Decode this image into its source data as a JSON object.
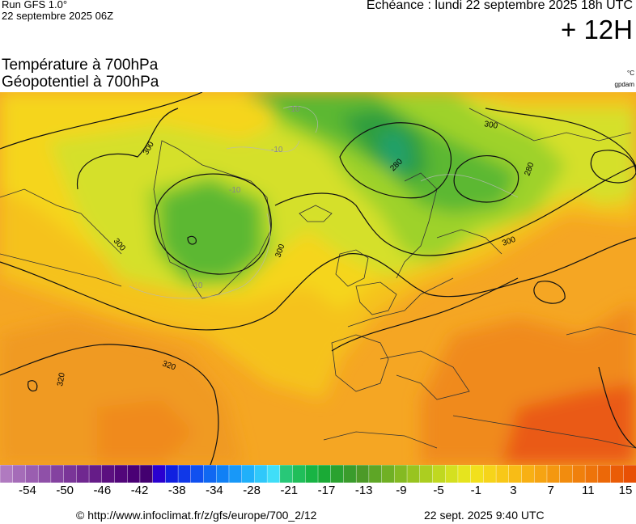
{
  "header": {
    "run": "Run GFS 1.0°",
    "run_date": "22 septembre 2025 06Z",
    "valid_time": "Echéance : lundi 22 septembre 2025 18h UTC",
    "lead_time": "+ 12H"
  },
  "titles": {
    "line1": "Température à 700hPa",
    "line2": "Géopotentiel à 700hPa",
    "unit_temp": "°C",
    "unit_geo": "gpdam"
  },
  "map": {
    "contour_labels": [
      "300",
      "300",
      "300",
      "300",
      "280",
      "280",
      "300",
      "320",
      "320",
      "-10",
      "-10",
      "-10",
      "-10"
    ],
    "colors": {
      "ocean_orange": "#f5a623",
      "warm_orange": "#f07a1e",
      "deep_orange": "#ea5a12",
      "yellow": "#f5d51f",
      "yellow_green": "#d5e02a",
      "light_green": "#9ed22c",
      "green": "#5cb830",
      "dark_green": "#2f9e3c",
      "teal": "#22a06a",
      "contour": "#111111",
      "coast": "#333333"
    }
  },
  "legend": {
    "colors": [
      "#b07ac0",
      "#a56cb8",
      "#9a5eb0",
      "#8f50a8",
      "#8442a0",
      "#7a3598",
      "#702890",
      "#661c88",
      "#5c1080",
      "#52067a",
      "#4a0075",
      "#430070",
      "#2a00d0",
      "#1020e0",
      "#1038e8",
      "#1050f0",
      "#1068f2",
      "#1080f5",
      "#1898f8",
      "#20b0fa",
      "#30c8fa",
      "#40def8",
      "#28c878",
      "#20be5a",
      "#18b444",
      "#1aaa36",
      "#2aa230",
      "#3a9c2c",
      "#4c9a28",
      "#5ea626",
      "#70b024",
      "#84ba22",
      "#98c420",
      "#acce20",
      "#c0d820",
      "#d4e020",
      "#e6e41e",
      "#f2e01c",
      "#f6d41a",
      "#f8c818",
      "#f8bc16",
      "#f8b014",
      "#f6a412",
      "#f49810",
      "#f28c0e",
      "#f0800c",
      "#ee740a",
      "#ec6808",
      "#ea5c06",
      "#e85004"
    ],
    "tick_labels": [
      "-54",
      "-50",
      "-46",
      "-42",
      "-38",
      "-34",
      "-28",
      "-21",
      "-17",
      "-13",
      "-9",
      "-5",
      "-1",
      "3",
      "7",
      "11",
      "15"
    ]
  },
  "footer": {
    "url": "© http://www.infoclimat.fr/z/gfs/europe/700_2/12",
    "timestamp": "22 sept. 2025  9:40 UTC"
  }
}
